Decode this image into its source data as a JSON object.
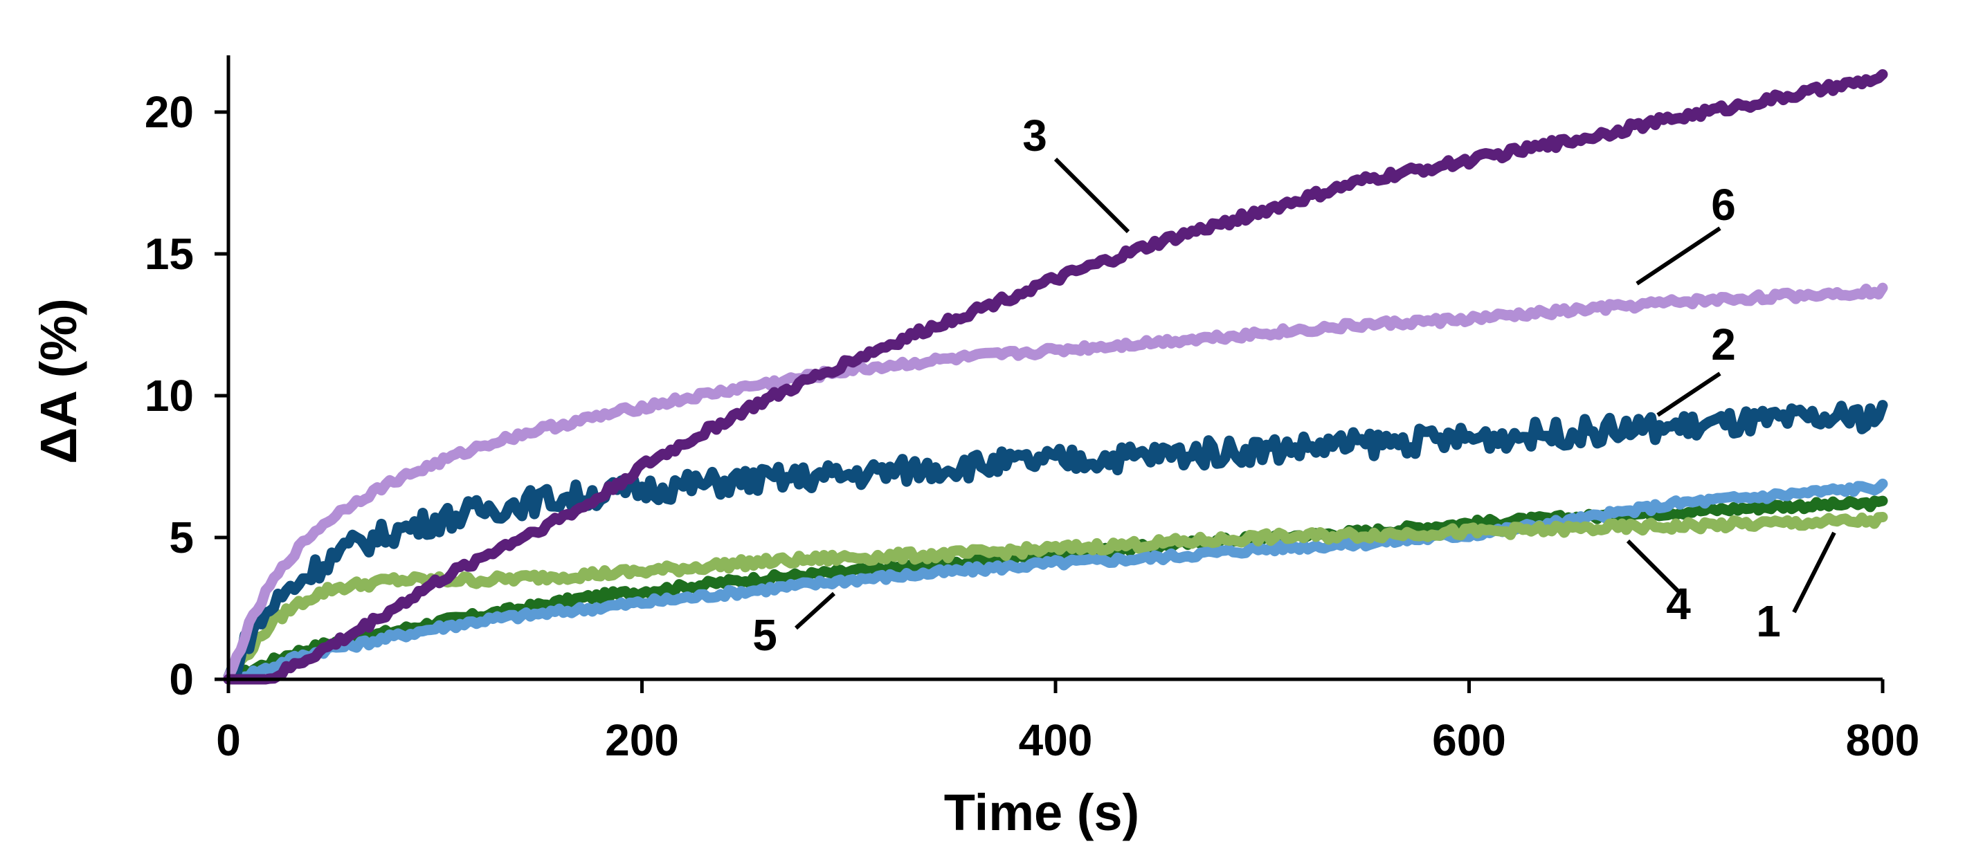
{
  "chart_data": {
    "type": "line",
    "title": "",
    "xlabel": "Time (s)",
    "ylabel": "ΔA (%)",
    "xlim": [
      0,
      800
    ],
    "ylim": [
      0,
      22
    ],
    "xticks": [
      0,
      200,
      400,
      600,
      800
    ],
    "yticks": [
      0,
      5,
      10,
      15,
      20
    ],
    "grid": false,
    "legend": "none",
    "x": [
      0,
      10,
      20,
      30,
      40,
      50,
      60,
      80,
      100,
      125,
      150,
      175,
      200,
      250,
      300,
      350,
      400,
      450,
      500,
      550,
      600,
      650,
      700,
      750,
      800
    ],
    "series": [
      {
        "name": "1",
        "color": "#1e6e1e",
        "values": [
          0,
          0.3,
          0.6,
          0.9,
          1.1,
          1.3,
          1.4,
          1.7,
          2.0,
          2.3,
          2.6,
          2.9,
          3.1,
          3.5,
          3.8,
          4.1,
          4.4,
          4.7,
          5.0,
          5.2,
          5.5,
          5.7,
          5.9,
          6.1,
          6.2
        ]
      },
      {
        "name": "2",
        "color": "#0e4d7b",
        "values": [
          0,
          1.5,
          2.5,
          3.2,
          3.8,
          4.3,
          4.7,
          5.2,
          5.6,
          6.0,
          6.3,
          6.5,
          6.7,
          7.0,
          7.2,
          7.5,
          7.7,
          7.9,
          8.1,
          8.3,
          8.5,
          8.7,
          8.9,
          9.1,
          9.3
        ]
      },
      {
        "name": "3",
        "color": "#5b1f7a",
        "values": [
          -0.3,
          -0.2,
          0.0,
          0.4,
          0.8,
          1.2,
          1.6,
          2.5,
          3.4,
          4.4,
          5.3,
          6.2,
          7.5,
          9.5,
          11.2,
          12.7,
          14.1,
          15.4,
          16.5,
          17.6,
          18.3,
          19.0,
          19.8,
          20.5,
          21.2
        ]
      },
      {
        "name": "4",
        "color": "#8db65a",
        "values": [
          0,
          1.0,
          1.9,
          2.5,
          2.9,
          3.2,
          3.3,
          3.5,
          3.5,
          3.5,
          3.6,
          3.7,
          3.8,
          4.1,
          4.3,
          4.4,
          4.6,
          4.8,
          5.0,
          5.1,
          5.2,
          5.3,
          5.4,
          5.5,
          5.6
        ]
      },
      {
        "name": "5",
        "color": "#5b9bd5",
        "values": [
          0,
          0.2,
          0.4,
          0.7,
          0.9,
          1.1,
          1.2,
          1.5,
          1.8,
          2.1,
          2.3,
          2.5,
          2.7,
          3.1,
          3.5,
          3.8,
          4.1,
          4.3,
          4.6,
          4.8,
          5.1,
          5.6,
          6.2,
          6.5,
          6.8
        ]
      },
      {
        "name": "6",
        "color": "#b38fd6",
        "values": [
          0,
          1.9,
          3.3,
          4.3,
          5.1,
          5.7,
          6.2,
          7.0,
          7.6,
          8.3,
          8.8,
          9.2,
          9.6,
          10.3,
          10.9,
          11.3,
          11.6,
          11.9,
          12.2,
          12.5,
          12.7,
          13.0,
          13.3,
          13.5,
          13.7
        ]
      }
    ],
    "annotations": [
      {
        "label": "1",
        "series": "1"
      },
      {
        "label": "2",
        "series": "2"
      },
      {
        "label": "3",
        "series": "3"
      },
      {
        "label": "4",
        "series": "4"
      },
      {
        "label": "5",
        "series": "5"
      },
      {
        "label": "6",
        "series": "6"
      }
    ]
  }
}
